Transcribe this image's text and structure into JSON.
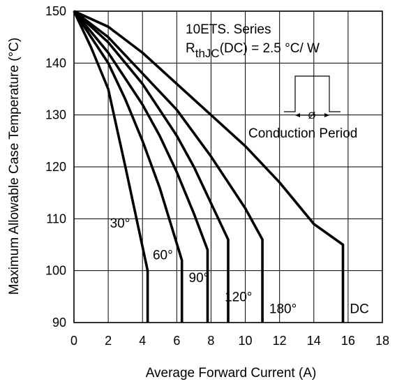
{
  "chart_data": {
    "type": "line",
    "xlabel": "Average Forward Current (A)",
    "ylabel": "Maximum Allowable Case Temperature (°C)",
    "xlim": [
      0,
      18
    ],
    "ylim": [
      90,
      150
    ],
    "xticks": [
      0,
      2,
      4,
      6,
      8,
      10,
      12,
      14,
      16,
      18
    ],
    "yticks": [
      90,
      100,
      110,
      120,
      130,
      140,
      150
    ],
    "grid": true,
    "annotation": {
      "series_name": "10ETS. Series",
      "rth_prefix": "R",
      "rth_subscript": "thJC",
      "rth_suffix": "(DC) = 2.5 °C/ W",
      "conduction_label": "Conduction Period",
      "phi_symbol": "Ø"
    },
    "series": [
      {
        "name": "30°",
        "x": [
          0,
          1,
          2,
          3,
          4.3,
          4.3
        ],
        "y": [
          150,
          143,
          135,
          120,
          100,
          90
        ]
      },
      {
        "name": "60°",
        "x": [
          0,
          1,
          2,
          3,
          4,
          5,
          6.3,
          6.3
        ],
        "y": [
          150,
          145,
          140,
          133,
          125,
          116,
          102,
          90
        ]
      },
      {
        "name": "90°",
        "x": [
          0,
          1,
          2,
          3,
          4,
          5,
          6,
          7,
          7.8,
          7.8
        ],
        "y": [
          150,
          146,
          142,
          137,
          132,
          126,
          119,
          111,
          104,
          90
        ]
      },
      {
        "name": "120°",
        "x": [
          0,
          1,
          2,
          3,
          4,
          5,
          6,
          7,
          8,
          9,
          9,
          9
        ],
        "y": [
          150,
          147,
          144,
          140,
          136,
          131,
          126,
          120,
          113,
          106,
          104,
          90
        ]
      },
      {
        "name": "180°",
        "x": [
          0,
          2,
          4,
          6,
          8,
          9,
          10,
          11,
          11,
          11
        ],
        "y": [
          150,
          145,
          138,
          131,
          122,
          117,
          112,
          106,
          103,
          90
        ]
      },
      {
        "name": "DC",
        "x": [
          0,
          2,
          4,
          6,
          8,
          10,
          12,
          14,
          15.7,
          15.7
        ],
        "y": [
          150,
          147,
          142,
          136,
          130,
          124,
          117,
          109,
          105,
          90
        ]
      }
    ],
    "series_labels": [
      {
        "text": "30°",
        "x": 2.1,
        "y": 108.3
      },
      {
        "text": "60°",
        "x": 4.6,
        "y": 102.2
      },
      {
        "text": "90°",
        "x": 6.7,
        "y": 97.8
      },
      {
        "text": "120°",
        "x": 8.8,
        "y": 94.1
      },
      {
        "text": "180°",
        "x": 11.4,
        "y": 91.8
      },
      {
        "text": "DC",
        "x": 16.1,
        "y": 91.8
      }
    ]
  }
}
